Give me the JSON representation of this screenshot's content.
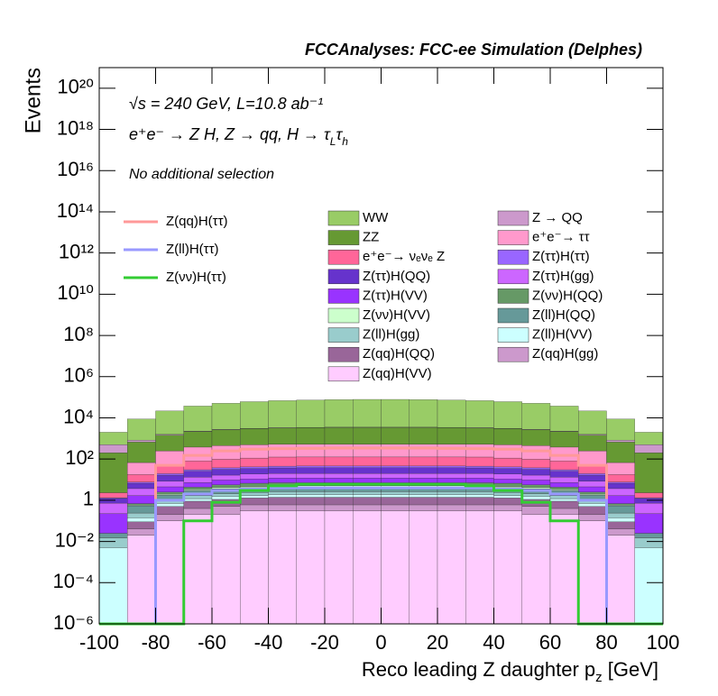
{
  "chart_data": {
    "type": "stacked_histogram",
    "title": "FCCAnalyses: FCC-ee Simulation (Delphes)",
    "annotations": {
      "energy": "√s = 240 GeV, L=10.8 ab⁻¹",
      "process": [
        "e⁺e⁻ → Z H, Z → qq, H → τ",
        "L",
        "τ",
        "h"
      ],
      "selection": "No additional selection"
    },
    "x_label": [
      "Reco leading Z daughter p",
      "z",
      " [GeV]"
    ],
    "y_label": "Events",
    "log_y": true,
    "bins": [
      -100,
      -90,
      -80,
      -70,
      -60,
      -50,
      -40,
      -30,
      -20,
      -10,
      0,
      10,
      20,
      30,
      40,
      50,
      60,
      70,
      80,
      90,
      100
    ],
    "xlim": [
      -100,
      100
    ],
    "xticks": [
      -100,
      -80,
      -60,
      -40,
      -20,
      0,
      20,
      40,
      60,
      80,
      100
    ],
    "ylim": [
      1e-06,
      1e+21
    ],
    "yticks": [
      {
        "value": 1e-06,
        "label": "10⁻⁶"
      },
      {
        "value": 0.0001,
        "label": "10⁻⁴"
      },
      {
        "value": 0.01,
        "label": "10⁻²"
      },
      1,
      {
        "value": 100,
        "label": "10²"
      },
      {
        "value": 10000,
        "label": "10⁴"
      },
      {
        "value": 1000000,
        "label": "10⁶"
      },
      {
        "value": 100000000,
        "label": "10⁸"
      },
      {
        "value": 10000000000,
        "label": "10¹⁰"
      },
      {
        "value": 1000000000000,
        "label": "10¹²"
      },
      {
        "value": 100000000000000,
        "label": "10¹⁴"
      },
      {
        "value": 10000000000000000,
        "label": "10¹⁶"
      },
      {
        "value": 1000000000000000000,
        "label": "10¹⁸"
      },
      {
        "value": 100000000000000000000,
        "label": "10²⁰"
      }
    ],
    "series": [
      {
        "name": "WW",
        "color": "#99cc66",
        "values": [
          1500,
          8000,
          20000,
          35000,
          48000,
          58000,
          65000,
          70000,
          73000,
          75000,
          75000,
          73000,
          70000,
          65000,
          58000,
          48000,
          35000,
          20000,
          8000,
          1500
        ]
      },
      {
        "name": "Z → QQ",
        "color": "#cc99cc",
        "values": [
          300,
          150,
          120,
          100,
          100,
          100,
          100,
          100,
          100,
          100,
          100,
          100,
          100,
          100,
          100,
          100,
          100,
          120,
          150,
          300
        ]
      },
      {
        "name": "ZZ",
        "color": "#669933",
        "values": [
          200,
          600,
          1200,
          1800,
          2200,
          2500,
          2700,
          2800,
          2900,
          2900,
          2900,
          2900,
          2800,
          2700,
          2500,
          2200,
          1800,
          1200,
          600,
          200
        ]
      },
      {
        "name": "e⁺e⁻→ ττ",
        "color": "#ff99cc",
        "values": [
          0,
          50,
          200,
          300,
          350,
          380,
          400,
          400,
          400,
          400,
          400,
          400,
          400,
          400,
          380,
          350,
          300,
          200,
          50,
          0
        ]
      },
      {
        "name": "e⁺e⁻→ νₑνₑ Z",
        "color": "#ff6699",
        "values": [
          1,
          10,
          30,
          50,
          60,
          70,
          80,
          80,
          80,
          80,
          80,
          80,
          80,
          80,
          70,
          60,
          50,
          30,
          10,
          1
        ]
      },
      {
        "name": "Z(ττ)H(ττ)",
        "color": "#9966ff",
        "values": [
          0.1,
          1,
          3,
          5,
          6,
          7,
          8,
          8,
          8,
          8,
          8,
          8,
          8,
          8,
          7,
          6,
          5,
          3,
          1,
          0.1
        ]
      },
      {
        "name": "Z(ττ)H(QQ)",
        "color": "#6633cc",
        "values": [
          0.5,
          3,
          8,
          12,
          15,
          16,
          17,
          18,
          18,
          18,
          18,
          18,
          18,
          17,
          16,
          15,
          12,
          8,
          3,
          0.5
        ]
      },
      {
        "name": "Z(ττ)H(gg)",
        "color": "#cc66ff",
        "values": [
          0.5,
          2,
          4,
          6,
          7,
          8,
          8,
          8,
          8,
          8,
          8,
          8,
          8,
          8,
          8,
          7,
          6,
          4,
          2,
          0.5
        ]
      },
      {
        "name": "Z(ττ)H(VV)",
        "color": "#9933ff",
        "values": [
          0.2,
          1,
          2,
          3,
          4,
          4,
          5,
          5,
          5,
          5,
          5,
          5,
          5,
          5,
          4,
          4,
          3,
          2,
          1,
          0.2
        ]
      },
      {
        "name": "Z(νν)H(QQ)",
        "color": "#669966",
        "values": [
          0,
          0.1,
          0.5,
          1,
          1.5,
          2,
          2,
          2,
          2,
          2,
          2,
          2,
          2,
          2,
          2,
          1.5,
          1,
          0.5,
          0.1,
          0
        ]
      },
      {
        "name": "Z(νν)H(VV)",
        "color": "#ccffcc",
        "values": [
          0,
          0.05,
          0.2,
          0.4,
          0.5,
          0.6,
          0.7,
          0.7,
          0.7,
          0.7,
          0.7,
          0.7,
          0.7,
          0.7,
          0.6,
          0.5,
          0.4,
          0.2,
          0.05,
          0
        ]
      },
      {
        "name": "Z(ll)H(QQ)",
        "color": "#669999",
        "values": [
          0.01,
          0.3,
          0.8,
          1.2,
          1.5,
          1.7,
          1.8,
          1.8,
          1.8,
          1.8,
          1.8,
          1.8,
          1.8,
          1.8,
          1.7,
          1.5,
          1.2,
          0.8,
          0.3,
          0.01
        ]
      },
      {
        "name": "Z(ll)H(gg)",
        "color": "#99cccc",
        "values": [
          0.01,
          0.1,
          0.3,
          0.5,
          0.6,
          0.7,
          0.7,
          0.7,
          0.7,
          0.7,
          0.7,
          0.7,
          0.7,
          0.7,
          0.7,
          0.6,
          0.5,
          0.3,
          0.1,
          0.01
        ]
      },
      {
        "name": "Z(ll)H(VV)",
        "color": "#ccffff",
        "values": [
          0.005,
          0.05,
          0.2,
          0.3,
          0.4,
          0.4,
          0.5,
          0.5,
          0.5,
          0.5,
          0.5,
          0.5,
          0.5,
          0.5,
          0.4,
          0.4,
          0.3,
          0.2,
          0.05,
          0.005
        ]
      },
      {
        "name": "Z(qq)H(QQ)",
        "color": "#996699",
        "values": [
          0,
          0.05,
          0.3,
          0.5,
          0.6,
          0.7,
          0.8,
          0.8,
          0.8,
          0.8,
          0.8,
          0.8,
          0.8,
          0.8,
          0.7,
          0.6,
          0.5,
          0.3,
          0.05,
          0
        ]
      },
      {
        "name": "Z(qq)H(gg)",
        "color": "#cc99cc",
        "values": [
          0,
          0.02,
          0.1,
          0.2,
          0.3,
          0.3,
          0.3,
          0.3,
          0.3,
          0.3,
          0.3,
          0.3,
          0.3,
          0.3,
          0.3,
          0.3,
          0.2,
          0.1,
          0.02,
          0
        ]
      },
      {
        "name": "Z(qq)H(VV)",
        "color": "#ffccff",
        "values": [
          0,
          0.02,
          0.1,
          0.2,
          0.2,
          0.3,
          0.3,
          0.3,
          0.3,
          0.3,
          0.3,
          0.3,
          0.3,
          0.3,
          0.3,
          0.2,
          0.2,
          0.1,
          0.02,
          0
        ]
      }
    ],
    "signals": [
      {
        "name": "Z(qq)H(ττ)",
        "color": "#ff9999",
        "values": [
          0,
          0,
          50,
          150,
          250,
          300,
          320,
          330,
          340,
          340,
          340,
          340,
          330,
          320,
          300,
          250,
          150,
          50,
          0,
          0
        ]
      },
      {
        "name": "Z(ll)H(ττ)",
        "color": "#9999ff",
        "values": [
          0,
          0,
          1,
          2,
          3,
          3.5,
          4,
          4,
          4,
          4,
          4,
          4,
          4,
          4,
          3.5,
          3,
          2,
          1,
          0,
          0
        ]
      },
      {
        "name": "Z(νν)H(ττ)",
        "color": "#33cc33",
        "values": [
          0,
          0,
          0,
          0.1,
          0.8,
          3,
          5,
          6,
          6,
          6,
          6,
          6,
          6,
          5,
          3,
          0.8,
          0.1,
          0,
          0,
          0
        ]
      }
    ]
  }
}
